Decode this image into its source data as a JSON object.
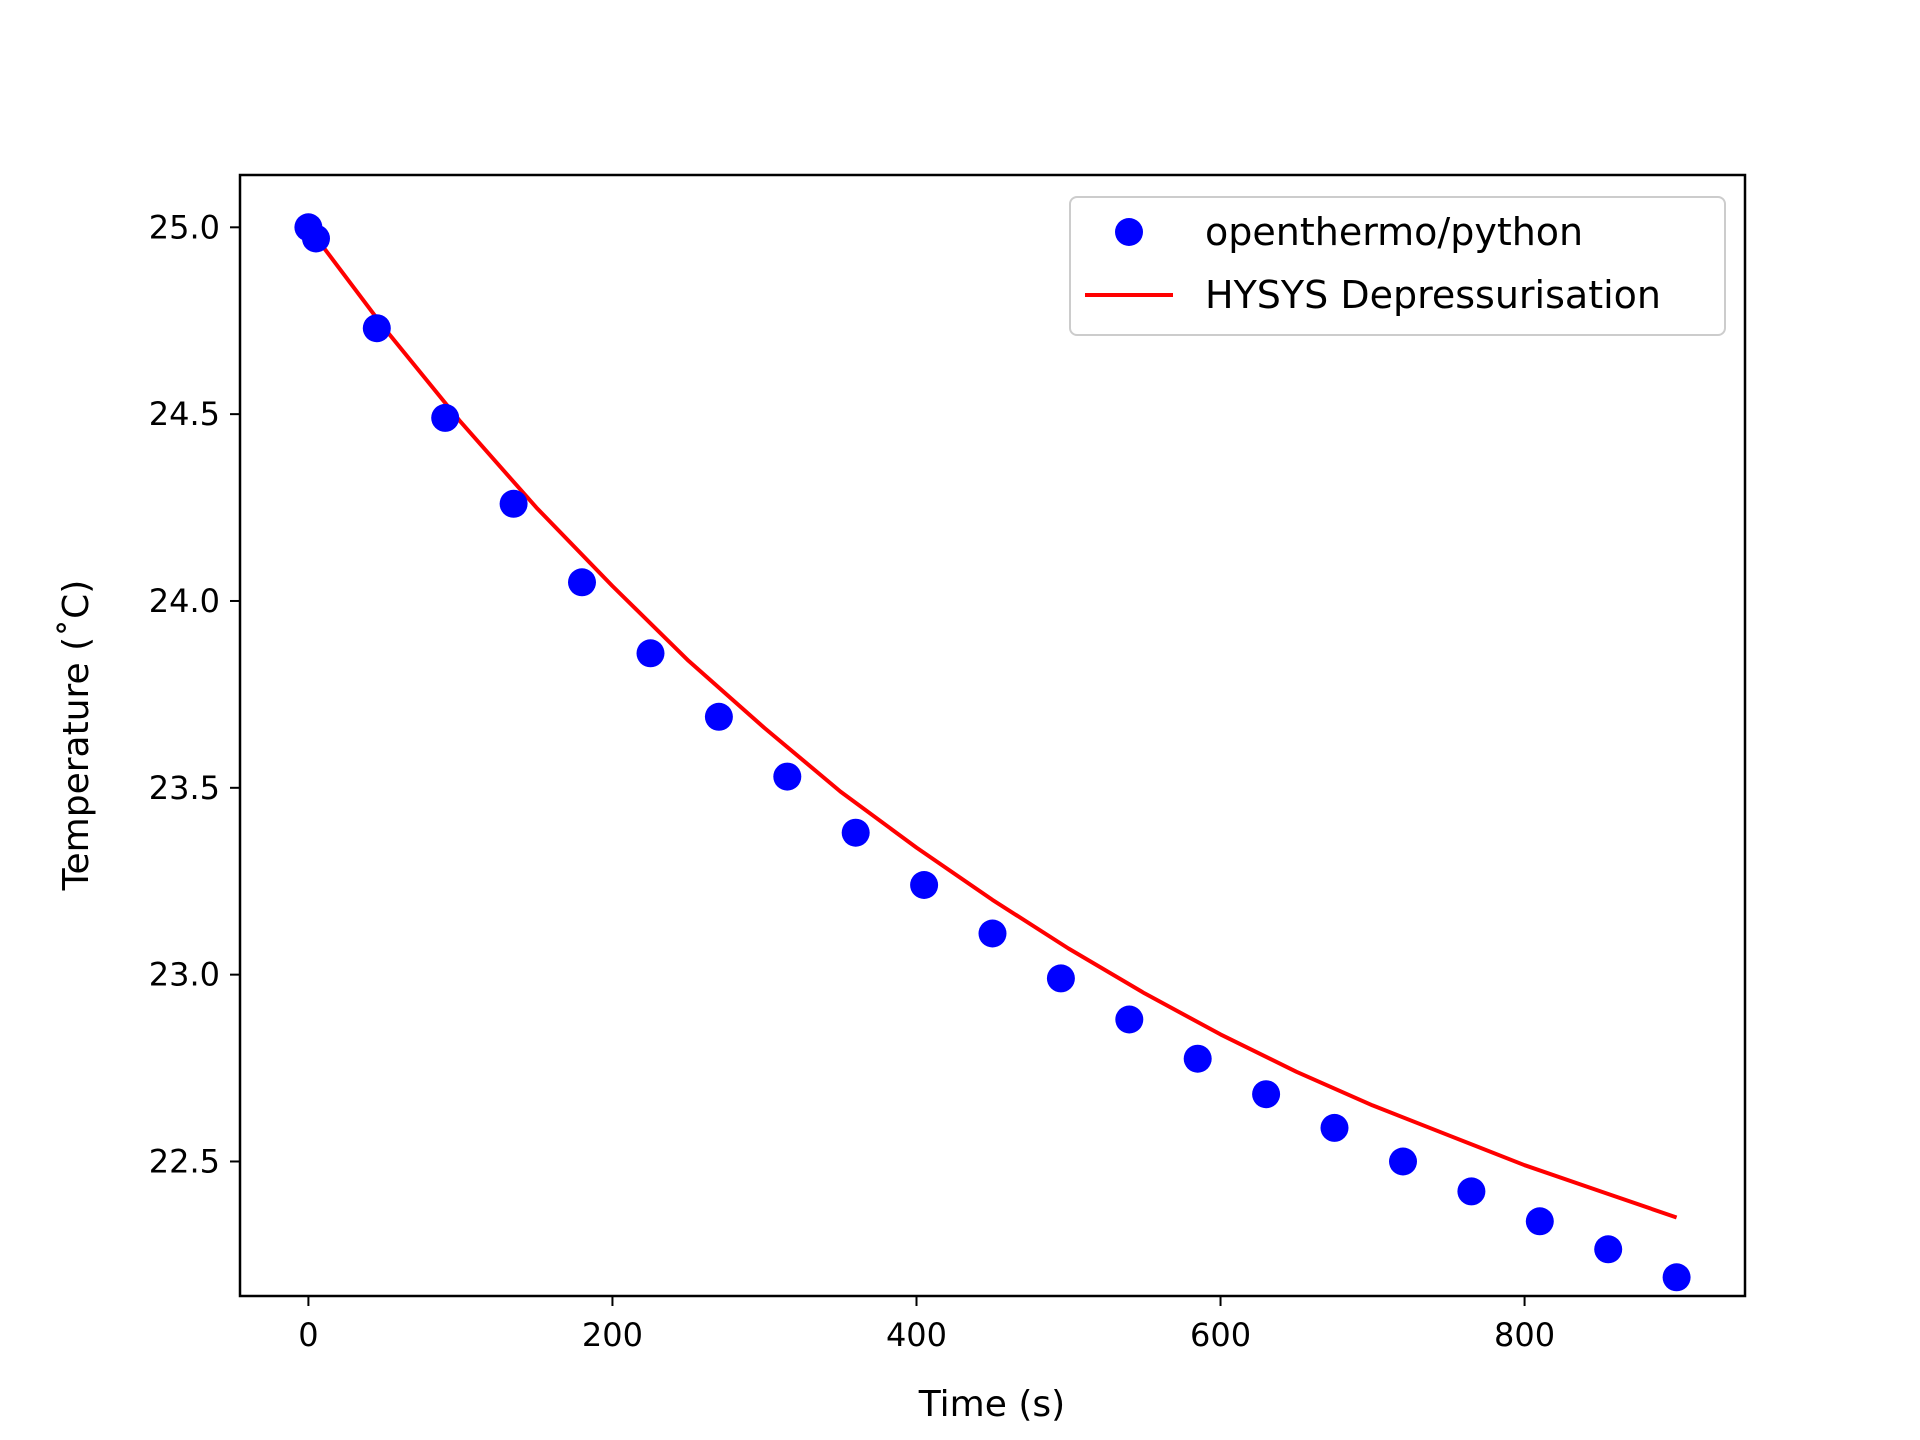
{
  "chart_data": {
    "type": "scatter",
    "title": "",
    "xlabel": "Time (s)",
    "ylabel": "Temperature (˚C)",
    "xlim": [
      -45,
      945
    ],
    "ylim": [
      22.14,
      25.14
    ],
    "xticks": [
      0,
      200,
      400,
      600,
      800
    ],
    "yticks": [
      22.5,
      23.0,
      23.5,
      24.0,
      24.5,
      25.0
    ],
    "xtick_labels": [
      "0",
      "200",
      "400",
      "600",
      "800"
    ],
    "ytick_labels": [
      "22.5",
      "23.0",
      "23.5",
      "24.0",
      "24.5",
      "25.0"
    ],
    "grid": false,
    "legend_position": "top-right",
    "series": [
      {
        "name": "openthermo/python",
        "kind": "scatter",
        "color": "#0000ff",
        "x": [
          0,
          5,
          45,
          90,
          135,
          180,
          225,
          270,
          315,
          360,
          405,
          450,
          495,
          540,
          585,
          630,
          675,
          720,
          765,
          810,
          855,
          900
        ],
        "y": [
          25.0,
          24.97,
          24.73,
          24.49,
          24.26,
          24.05,
          23.86,
          23.69,
          23.53,
          23.38,
          23.24,
          23.11,
          22.99,
          22.88,
          22.775,
          22.68,
          22.59,
          22.5,
          22.42,
          22.34,
          22.265,
          22.19
        ]
      },
      {
        "name": "HYSYS Depressurisation",
        "kind": "line",
        "color": "#ff0000",
        "x": [
          0,
          50,
          100,
          150,
          200,
          250,
          300,
          350,
          400,
          450,
          500,
          550,
          600,
          650,
          700,
          750,
          800,
          850,
          900
        ],
        "y": [
          25.0,
          24.73,
          24.48,
          24.25,
          24.04,
          23.84,
          23.66,
          23.49,
          23.34,
          23.2,
          23.07,
          22.95,
          22.84,
          22.74,
          22.65,
          22.57,
          22.49,
          22.42,
          22.35
        ]
      }
    ]
  }
}
